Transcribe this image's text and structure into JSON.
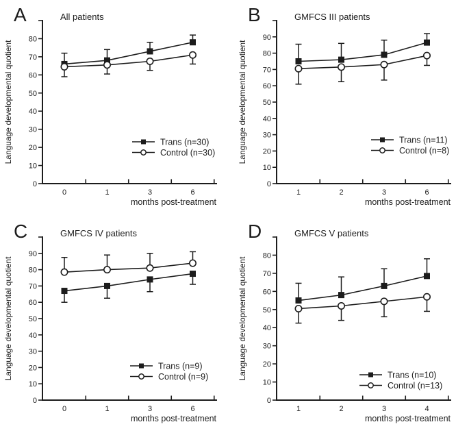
{
  "page": {
    "background": "#ffffff",
    "ink": "#1c1c1c"
  },
  "chart_data": [
    {
      "type": "line",
      "panel_letter": "A",
      "title": "All patients",
      "xlabel": "months post-treatment",
      "ylabel": "Language developmental quotient",
      "x_tick_labels": [
        "0",
        "1",
        "3",
        "6"
      ],
      "y_ticks": [
        0,
        10,
        20,
        30,
        40,
        50,
        60,
        70,
        80
      ],
      "ylim": [
        0,
        90
      ],
      "grid": false,
      "legend_position": "lower-right",
      "legend_xy": [
        193,
        207
      ],
      "series": [
        {
          "name": "Trans (n=30)",
          "marker": "filled-square",
          "values": [
            66,
            68,
            73,
            78
          ],
          "error_dir": "up",
          "errors": [
            6,
            6,
            5,
            4
          ]
        },
        {
          "name": "Control (n=30)",
          "marker": "open-circle",
          "values": [
            64.5,
            65.5,
            67.5,
            71
          ],
          "error_dir": "down",
          "errors": [
            5.5,
            5,
            5,
            5
          ]
        }
      ]
    },
    {
      "type": "line",
      "panel_letter": "B",
      "title": "GMFCS III patients",
      "xlabel": "months post-treatment",
      "ylabel": "Language developmental quotient",
      "x_tick_labels": [
        "1",
        "2",
        "3",
        "6"
      ],
      "y_ticks": [
        0,
        10,
        20,
        30,
        40,
        50,
        60,
        70,
        80,
        90
      ],
      "ylim": [
        0,
        100
      ],
      "grid": false,
      "legend_position": "lower-right",
      "legend_xy": [
        200,
        204
      ],
      "series": [
        {
          "name": "Trans (n=11)",
          "marker": "filled-square",
          "values": [
            75,
            76,
            79,
            86.5
          ],
          "error_dir": "up",
          "errors": [
            10.5,
            10,
            9,
            5.5
          ]
        },
        {
          "name": "Control (n=8)",
          "marker": "open-circle",
          "values": [
            70.5,
            71.5,
            73,
            78.5
          ],
          "error_dir": "down",
          "errors": [
            9.5,
            9,
            9.5,
            6
          ]
        }
      ]
    },
    {
      "type": "line",
      "panel_letter": "C",
      "title": "GMFCS IV patients",
      "xlabel": "months post-treatment",
      "ylabel": "Language developmental quotient",
      "x_tick_labels": [
        "0",
        "1",
        "3",
        "6"
      ],
      "y_ticks": [
        0,
        10,
        20,
        30,
        40,
        50,
        60,
        70,
        80,
        90
      ],
      "ylim": [
        0,
        100
      ],
      "grid": false,
      "legend_position": "lower-right",
      "legend_xy": [
        190,
        218
      ],
      "series": [
        {
          "name": "Trans (n=9)",
          "marker": "filled-square",
          "values": [
            67,
            70,
            74,
            77.5
          ],
          "error_dir": "down",
          "errors": [
            7,
            7.5,
            7.5,
            6.5
          ]
        },
        {
          "name": "Control (n=9)",
          "marker": "open-circle",
          "values": [
            78.5,
            80,
            81,
            84
          ],
          "error_dir": "up",
          "errors": [
            9,
            9,
            9,
            7
          ]
        }
      ]
    },
    {
      "type": "line",
      "panel_letter": "D",
      "title": "GMFCS V patients",
      "xlabel": "months post-treatment",
      "ylabel": "Language developmental quotient",
      "x_tick_labels": [
        "1",
        "2",
        "3",
        "4"
      ],
      "y_ticks": [
        0,
        10,
        20,
        30,
        40,
        50,
        60,
        70,
        80
      ],
      "ylim": [
        0,
        90
      ],
      "grid": false,
      "legend_position": "lower-right",
      "legend_xy": [
        183,
        231
      ],
      "series": [
        {
          "name": "Trans (n=10)",
          "marker": "filled-square",
          "values": [
            55,
            58,
            63,
            68.5
          ],
          "error_dir": "up",
          "errors": [
            9.5,
            10,
            9.5,
            9.5
          ]
        },
        {
          "name": "Control (n=13)",
          "marker": "open-circle",
          "values": [
            50.5,
            52,
            54.5,
            57
          ],
          "error_dir": "down",
          "errors": [
            8,
            8,
            8.5,
            8
          ]
        }
      ]
    }
  ]
}
